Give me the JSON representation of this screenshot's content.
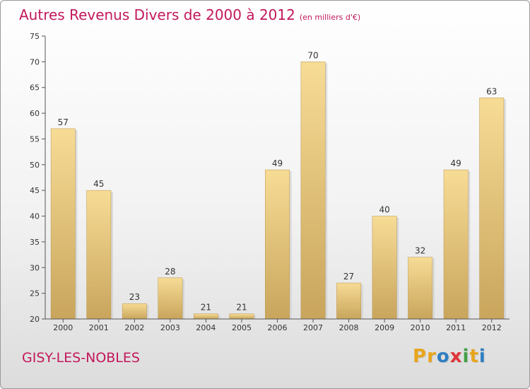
{
  "title": "Autres Revenus Divers de 2000 à 2012",
  "subtitle": "(en milliers d'€)",
  "place": "GISY-LES-NOBLES",
  "logo": {
    "letters": [
      "P",
      "r",
      "o",
      "x",
      "i",
      "t",
      "i"
    ],
    "colors": [
      "#e8a51c",
      "#e8a51c",
      "#2e7fc1",
      "#e0353a",
      "#43a047",
      "#e8a51c",
      "#2e7fc1"
    ]
  },
  "chart_data": {
    "type": "bar",
    "title": "Autres Revenus Divers de 2000 à 2012",
    "subtitle": "(en milliers d'€)",
    "categories": [
      "2000",
      "2001",
      "2002",
      "2003",
      "2004",
      "2005",
      "2006",
      "2007",
      "2008",
      "2009",
      "2010",
      "2011",
      "2012"
    ],
    "values": [
      57,
      45,
      23,
      28,
      21,
      21,
      49,
      70,
      27,
      40,
      32,
      49,
      63
    ],
    "ylim": [
      20,
      75
    ],
    "yticks": [
      20,
      25,
      30,
      35,
      40,
      45,
      50,
      55,
      60,
      65,
      70,
      75
    ],
    "grid": false,
    "bar_color": "#e6c57a"
  }
}
